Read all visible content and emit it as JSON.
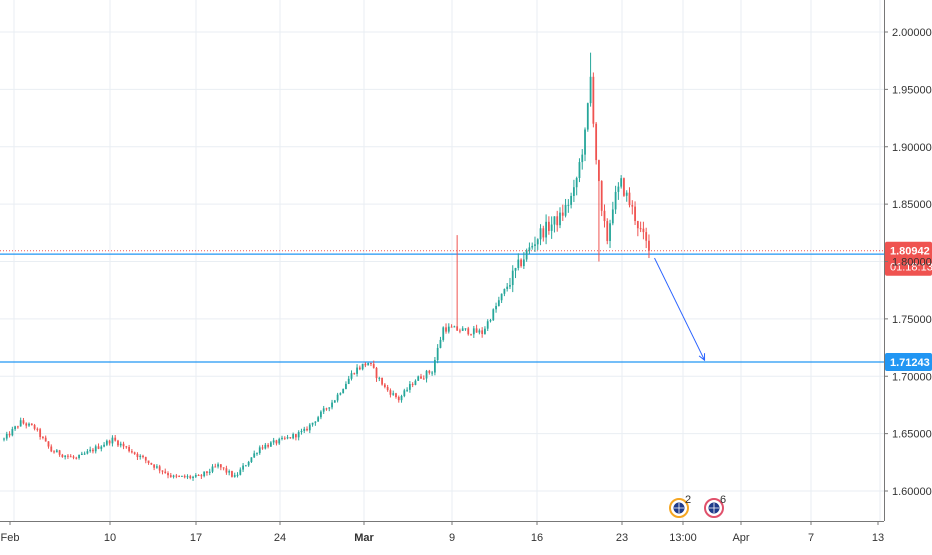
{
  "chart_data": {
    "type": "candlestick",
    "title": "",
    "grid": true,
    "colors": {
      "up": "#26a69a",
      "down": "#ef5350",
      "hline": "#2196f3",
      "price_line": "#ef5350",
      "grid": "#e9eef3",
      "text": "#333333",
      "arrow": "#2962ff"
    },
    "y_axis": {
      "min": 1.58,
      "max": 2.01,
      "ticks": [
        "1.60000",
        "1.65000",
        "1.70000",
        "1.75000",
        "1.80000",
        "1.85000",
        "1.90000",
        "1.95000",
        "2.00000"
      ],
      "tick_values": [
        1.6,
        1.65,
        1.7,
        1.75,
        1.8,
        1.85,
        1.9,
        1.95,
        2.0
      ]
    },
    "x_axis": {
      "tick_labels": [
        "Feb",
        "10",
        "17",
        "24",
        "Mar",
        "9",
        "16",
        "23",
        "13:00",
        "Apr",
        "7",
        "13"
      ],
      "bold_labels": [
        "Mar"
      ]
    },
    "series_nodes": [
      {
        "t": 0,
        "p": 1.645
      },
      {
        "t": 6,
        "p": 1.66
      },
      {
        "t": 11,
        "p": 1.655
      },
      {
        "t": 17,
        "p": 1.635
      },
      {
        "t": 26,
        "p": 1.628
      },
      {
        "t": 32,
        "p": 1.636
      },
      {
        "t": 39,
        "p": 1.645
      },
      {
        "t": 45,
        "p": 1.636
      },
      {
        "t": 54,
        "p": 1.622
      },
      {
        "t": 61,
        "p": 1.612
      },
      {
        "t": 70,
        "p": 1.612
      },
      {
        "t": 77,
        "p": 1.622
      },
      {
        "t": 83,
        "p": 1.612
      },
      {
        "t": 92,
        "p": 1.638
      },
      {
        "t": 101,
        "p": 1.645
      },
      {
        "t": 108,
        "p": 1.652
      },
      {
        "t": 119,
        "p": 1.68
      },
      {
        "t": 126,
        "p": 1.705
      },
      {
        "t": 131,
        "p": 1.712
      },
      {
        "t": 137,
        "p": 1.69
      },
      {
        "t": 142,
        "p": 1.68
      },
      {
        "t": 148,
        "p": 1.697
      },
      {
        "t": 154,
        "p": 1.705
      },
      {
        "t": 158,
        "p": 1.742
      },
      {
        "t": 165,
        "p": 1.74
      },
      {
        "t": 172,
        "p": 1.738
      },
      {
        "t": 179,
        "p": 1.77
      },
      {
        "t": 186,
        "p": 1.8
      },
      {
        "t": 193,
        "p": 1.825
      },
      {
        "t": 200,
        "p": 1.838
      },
      {
        "t": 205,
        "p": 1.86
      },
      {
        "t": 209,
        "p": 1.91
      },
      {
        "t": 211,
        "p": 1.96
      },
      {
        "t": 213,
        "p": 1.89
      },
      {
        "t": 215,
        "p": 1.84
      },
      {
        "t": 217,
        "p": 1.82
      },
      {
        "t": 219,
        "p": 1.85
      },
      {
        "t": 222,
        "p": 1.868
      },
      {
        "t": 226,
        "p": 1.845
      },
      {
        "t": 229,
        "p": 1.826
      },
      {
        "t": 232,
        "p": 1.81
      }
    ],
    "spikes": [
      {
        "t": 163,
        "high": 1.823
      },
      {
        "t": 211,
        "high": 1.982
      },
      {
        "t": 214,
        "low": 1.8
      }
    ],
    "horizontal_levels": [
      {
        "value": 1.80641,
        "label": "1.80641"
      },
      {
        "value": 1.71243,
        "label": "1.71243"
      }
    ],
    "last_price": {
      "value": 1.80942,
      "label": "1.80942",
      "countdown": "01:18:13"
    },
    "projection_arrow": {
      "from": {
        "t": 234,
        "p": 1.803
      },
      "to": {
        "t": 252,
        "p": 1.714
      }
    },
    "events": [
      {
        "count": "2",
        "color": "#f5a623"
      },
      {
        "count": "6",
        "color": "#e0506b"
      }
    ]
  }
}
